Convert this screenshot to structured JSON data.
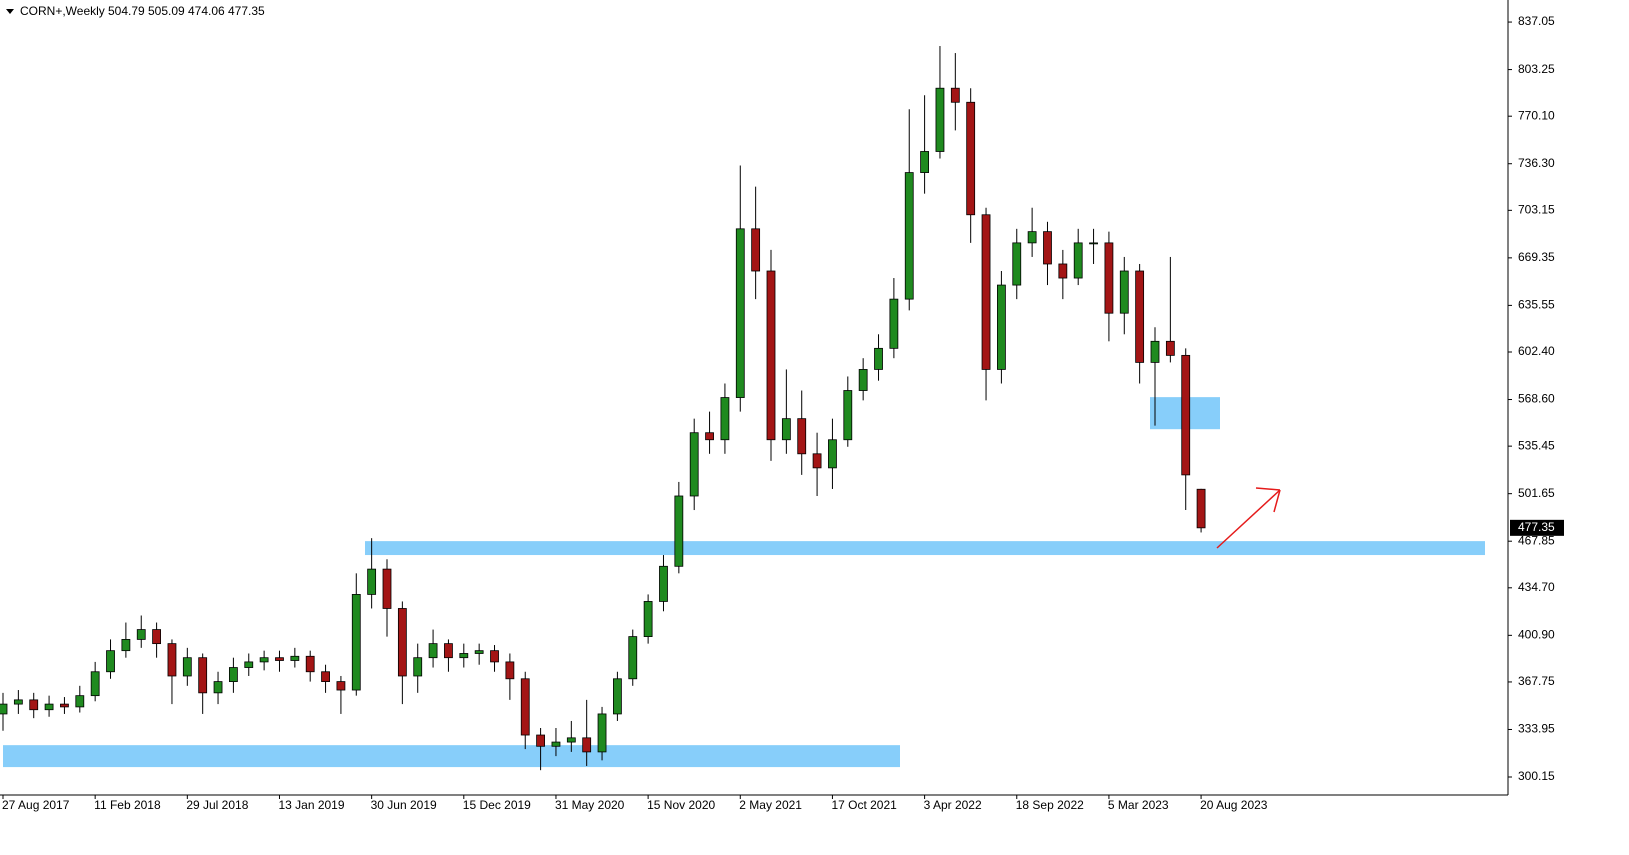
{
  "chart_data": {
    "type": "candlestick",
    "title": "CORN+,Weekly",
    "categories": [
      "27 Aug 2017",
      null,
      null,
      null,
      null,
      null,
      "11 Feb 2018",
      null,
      null,
      null,
      null,
      null,
      "29 Jul 2018",
      null,
      null,
      null,
      null,
      null,
      "13 Jan 2019",
      null,
      null,
      null,
      null,
      null,
      "30 Jun 2019",
      null,
      null,
      null,
      null,
      null,
      "15 Dec 2019",
      null,
      null,
      null,
      null,
      null,
      "31 May 2020",
      null,
      null,
      null,
      null,
      null,
      "15 Nov 2020",
      null,
      null,
      null,
      null,
      null,
      "2 May 2021",
      null,
      null,
      null,
      null,
      null,
      "17 Oct 2021",
      null,
      null,
      null,
      null,
      null,
      "3 Apr 2022",
      null,
      null,
      null,
      null,
      null,
      "18 Sep 2022",
      null,
      null,
      null,
      null,
      null,
      "5 Mar 2023",
      null,
      null,
      null,
      null,
      null,
      "20 Aug 2023"
    ],
    "open": [
      345,
      352,
      355,
      348,
      352,
      350,
      358,
      375,
      390,
      398,
      405,
      395,
      372,
      385,
      360,
      368,
      378,
      382,
      385,
      383,
      386,
      375,
      368,
      362,
      430,
      448,
      420,
      372,
      385,
      395,
      385,
      388,
      390,
      382,
      370,
      330,
      322,
      325,
      328,
      318,
      345,
      370,
      400,
      425,
      450,
      500,
      545,
      540,
      570,
      690,
      660,
      540,
      555,
      530,
      520,
      540,
      575,
      590,
      605,
      640,
      730,
      745,
      790,
      780,
      700,
      590,
      650,
      680,
      688,
      665,
      655,
      680,
      680,
      630,
      660,
      595,
      610,
      600,
      504.79
    ],
    "high": [
      360,
      362,
      360,
      358,
      357,
      365,
      382,
      398,
      410,
      415,
      410,
      398,
      392,
      388,
      375,
      385,
      388,
      390,
      390,
      392,
      390,
      380,
      372,
      445,
      470,
      455,
      425,
      395,
      405,
      398,
      395,
      395,
      394,
      388,
      375,
      335,
      335,
      340,
      355,
      350,
      375,
      405,
      430,
      458,
      510,
      555,
      560,
      580,
      735,
      720,
      675,
      590,
      575,
      545,
      555,
      585,
      598,
      615,
      655,
      775,
      785,
      820,
      815,
      790,
      705,
      660,
      690,
      705,
      695,
      675,
      690,
      690,
      688,
      670,
      665,
      620,
      670,
      605,
      505.09
    ],
    "low": [
      333,
      345,
      342,
      343,
      345,
      346,
      354,
      370,
      385,
      392,
      385,
      352,
      365,
      345,
      352,
      360,
      372,
      376,
      375,
      378,
      368,
      360,
      345,
      358,
      420,
      400,
      352,
      360,
      378,
      375,
      378,
      380,
      375,
      355,
      320,
      305,
      315,
      318,
      308,
      312,
      340,
      365,
      395,
      418,
      445,
      490,
      530,
      530,
      560,
      640,
      525,
      530,
      515,
      500,
      505,
      535,
      568,
      582,
      598,
      632,
      715,
      740,
      760,
      680,
      568,
      580,
      640,
      670,
      650,
      640,
      650,
      665,
      610,
      615,
      580,
      550,
      595,
      490,
      474.06
    ],
    "close": [
      352,
      355,
      348,
      352,
      350,
      358,
      375,
      390,
      398,
      405,
      395,
      372,
      385,
      360,
      368,
      378,
      382,
      385,
      383,
      386,
      375,
      368,
      362,
      430,
      448,
      420,
      372,
      385,
      395,
      385,
      388,
      390,
      382,
      370,
      330,
      322,
      325,
      328,
      318,
      345,
      370,
      400,
      425,
      450,
      500,
      545,
      540,
      570,
      690,
      660,
      540,
      555,
      530,
      520,
      540,
      575,
      590,
      605,
      640,
      730,
      745,
      790,
      780,
      700,
      590,
      650,
      680,
      688,
      665,
      655,
      680,
      680,
      630,
      660,
      595,
      610,
      600,
      515,
      477.35
    ],
    "up_color": "#1f8a1f",
    "down_color": "#a31515",
    "ylim": [
      287.35,
      850.6
    ],
    "yticks": [
      837.05,
      803.25,
      {
        "value": 770.1,
        "label": "770.10"
      },
      {
        "value": 736.3,
        "label": "736.30"
      },
      703.15,
      669.35,
      635.55,
      {
        "value": 602.4,
        "label": "602.40"
      },
      {
        "value": 568.6,
        "label": "568.60"
      },
      535.45,
      501.65,
      467.85,
      {
        "value": 434.7,
        "label": "434.70"
      },
      {
        "value": 400.9,
        "label": "400.90"
      },
      367.75,
      333.95,
      300.15
    ],
    "zone_color": "#87cefa",
    "zones": [
      {
        "low": 307.2,
        "high": 322.8
      },
      {
        "low": 458.0,
        "high": 467.9
      },
      {
        "low": 547.5,
        "high": 570.3
      }
    ]
  }
}
